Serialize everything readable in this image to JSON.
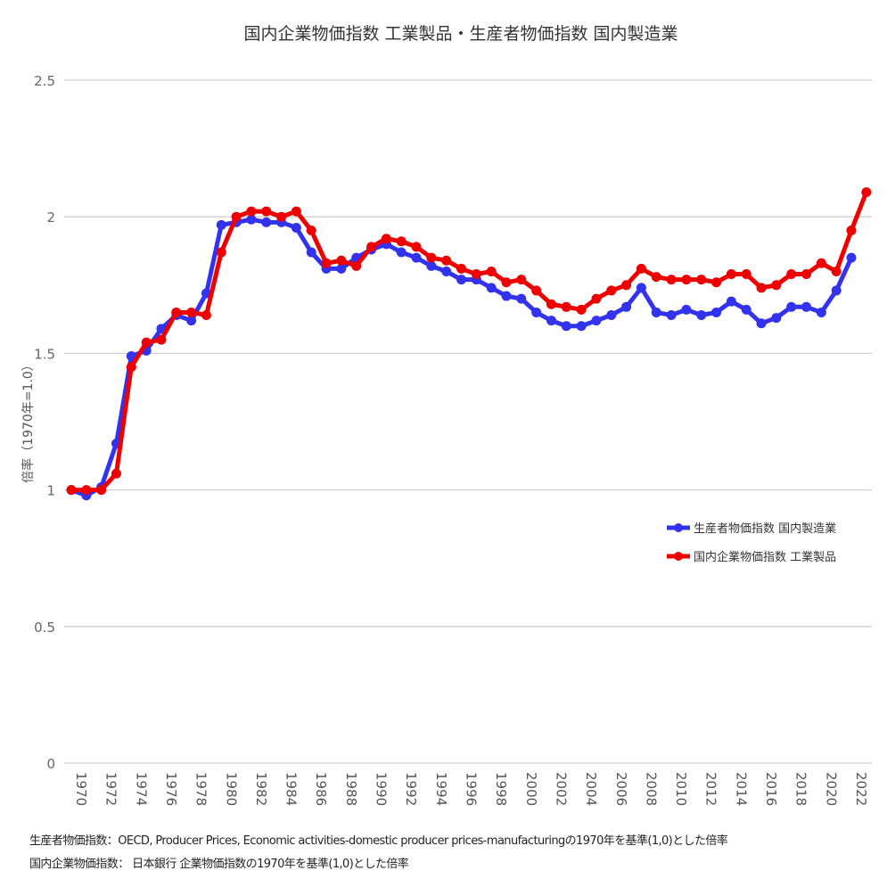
{
  "chart_data": {
    "type": "line",
    "title": "国内企業物価指数 工業製品・生産者物価指数 国内製造業",
    "ylabel": "倍率（1970年=1.0）",
    "xlabel": "",
    "ylim": [
      0,
      2.5
    ],
    "yticks": [
      "0",
      "0.5",
      "1",
      "1.5",
      "2",
      "2.5"
    ],
    "grid": true,
    "legend": "right",
    "x": [
      1970,
      1971,
      1972,
      1973,
      1974,
      1975,
      1976,
      1977,
      1978,
      1979,
      1980,
      1981,
      1982,
      1983,
      1984,
      1985,
      1986,
      1987,
      1988,
      1989,
      1990,
      1991,
      1992,
      1993,
      1994,
      1995,
      1996,
      1997,
      1998,
      1999,
      2000,
      2001,
      2002,
      2003,
      2004,
      2005,
      2006,
      2007,
      2008,
      2009,
      2010,
      2011,
      2012,
      2013,
      2014,
      2015,
      2016,
      2017,
      2018,
      2019,
      2020,
      2021,
      2022,
      2023
    ],
    "xticks": [
      "1970",
      "1972",
      "1974",
      "1976",
      "1978",
      "1980",
      "1982",
      "1984",
      "1986",
      "1988",
      "1990",
      "1992",
      "1994",
      "1996",
      "1998",
      "2000",
      "2002",
      "2004",
      "2006",
      "2008",
      "2010",
      "2012",
      "2014",
      "2016",
      "2018",
      "2020",
      "2022"
    ],
    "series": [
      {
        "name": "生産者物価指数 国内製造業",
        "color": "#3333ee",
        "values": [
          1.0,
          0.98,
          1.01,
          1.17,
          1.49,
          1.51,
          1.59,
          1.64,
          1.62,
          1.72,
          1.97,
          1.98,
          1.99,
          1.98,
          1.98,
          1.96,
          1.87,
          1.81,
          1.81,
          1.85,
          1.88,
          1.9,
          1.87,
          1.85,
          1.82,
          1.8,
          1.77,
          1.77,
          1.74,
          1.71,
          1.7,
          1.65,
          1.62,
          1.6,
          1.6,
          1.62,
          1.64,
          1.67,
          1.74,
          1.65,
          1.64,
          1.66,
          1.64,
          1.65,
          1.69,
          1.66,
          1.61,
          1.63,
          1.67,
          1.67,
          1.65,
          1.73,
          1.85,
          null
        ]
      },
      {
        "name": "国内企業物価指数 工業製品",
        "color": "#ee0000",
        "values": [
          1.0,
          1.0,
          1.0,
          1.06,
          1.45,
          1.54,
          1.55,
          1.65,
          1.65,
          1.64,
          1.87,
          2.0,
          2.02,
          2.02,
          2.0,
          2.02,
          1.95,
          1.83,
          1.84,
          1.82,
          1.89,
          1.92,
          1.91,
          1.89,
          1.85,
          1.84,
          1.81,
          1.79,
          1.8,
          1.76,
          1.77,
          1.73,
          1.68,
          1.67,
          1.66,
          1.7,
          1.73,
          1.75,
          1.81,
          1.78,
          1.77,
          1.77,
          1.77,
          1.76,
          1.79,
          1.79,
          1.74,
          1.75,
          1.79,
          1.79,
          1.83,
          1.8,
          1.95,
          2.09
        ]
      }
    ]
  },
  "footnotes": [
    "生産者物価指数：OECD, Producer Prices, Economic activities-domestic producer prices-manufacturingの1970年を基準(1,0)とした倍率",
    "国内企業物価指数： 日本銀行 企業物価指数の1970年を基準(1,0)とした倍率"
  ]
}
